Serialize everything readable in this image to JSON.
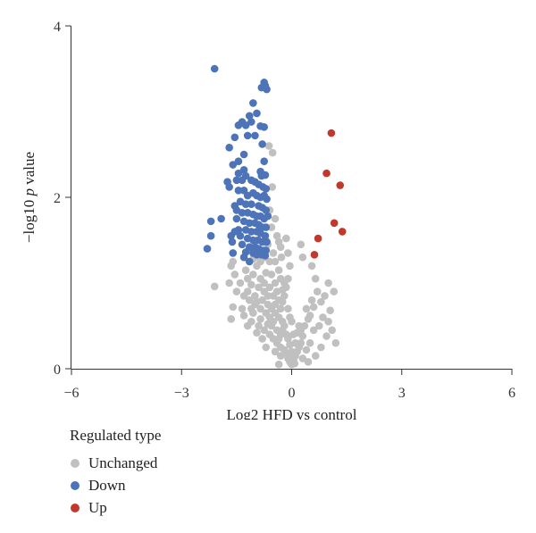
{
  "chart_data": {
    "type": "scatter",
    "xlabel": "Log2 HFD vs control",
    "ylabel_parts": [
      "−log10 ",
      "p",
      " value"
    ],
    "xlim": [
      -6,
      6
    ],
    "ylim": [
      0,
      4
    ],
    "x_ticks": [
      -6,
      -3,
      0,
      3,
      6
    ],
    "x_tick_labels": [
      "−6",
      "−3",
      "0",
      "3",
      "6"
    ],
    "y_ticks": [
      0,
      2,
      4
    ],
    "y_tick_labels": [
      "0",
      "2",
      "4"
    ],
    "grid": false,
    "legend": {
      "title": "Regulated type",
      "position": "bottom-left",
      "entries": [
        {
          "label": "Unchanged",
          "color": "#c0c0c0"
        },
        {
          "label": "Down",
          "color": "#4d73b8"
        },
        {
          "label": "Up",
          "color": "#c0392b"
        }
      ]
    },
    "series": [
      {
        "name": "Unchanged",
        "color": "#c0c0c0",
        "points": [
          [
            -0.62,
            2.6
          ],
          [
            -0.52,
            2.52
          ],
          [
            -0.53,
            2.12
          ],
          [
            -0.6,
            1.85
          ],
          [
            -0.45,
            1.75
          ],
          [
            -0.55,
            1.65
          ],
          [
            -0.4,
            1.55
          ],
          [
            -0.35,
            1.48
          ],
          [
            -0.3,
            1.42
          ],
          [
            -0.28,
            1.3
          ],
          [
            -0.5,
            1.35
          ],
          [
            -0.6,
            1.25
          ],
          [
            -0.85,
            1.25
          ],
          [
            -1.05,
            1.28
          ],
          [
            -1.3,
            1.3
          ],
          [
            -1.6,
            1.25
          ],
          [
            -1.65,
            1.2
          ],
          [
            -2.1,
            0.96
          ],
          [
            -1.7,
            1.0
          ],
          [
            -1.55,
            1.1
          ],
          [
            -1.25,
            1.15
          ],
          [
            -1.05,
            1.1
          ],
          [
            -0.85,
            1.05
          ],
          [
            -0.7,
            1.12
          ],
          [
            -0.55,
            1.1
          ],
          [
            -0.45,
            1.0
          ],
          [
            -0.4,
            0.9
          ],
          [
            -0.5,
            0.85
          ],
          [
            -0.6,
            0.95
          ],
          [
            -0.75,
            0.9
          ],
          [
            -0.9,
            0.95
          ],
          [
            -1.1,
            0.98
          ],
          [
            -1.2,
            0.9
          ],
          [
            -1.0,
            0.85
          ],
          [
            -0.8,
            0.8
          ],
          [
            -0.65,
            0.75
          ],
          [
            -0.55,
            0.7
          ],
          [
            -0.45,
            0.65
          ],
          [
            -0.35,
            0.6
          ],
          [
            -0.3,
            0.7
          ],
          [
            -0.25,
            0.55
          ],
          [
            -0.2,
            0.5
          ],
          [
            -0.25,
            0.45
          ],
          [
            -0.3,
            0.4
          ],
          [
            -0.35,
            0.35
          ],
          [
            -0.4,
            0.45
          ],
          [
            -0.5,
            0.55
          ],
          [
            -0.6,
            0.6
          ],
          [
            -0.7,
            0.65
          ],
          [
            -0.85,
            0.7
          ],
          [
            -1.0,
            0.75
          ],
          [
            -1.15,
            0.8
          ],
          [
            -1.3,
            0.85
          ],
          [
            -1.5,
            0.9
          ],
          [
            -1.6,
            0.72
          ],
          [
            -1.65,
            0.58
          ],
          [
            -1.3,
            0.62
          ],
          [
            -1.1,
            0.55
          ],
          [
            -0.9,
            0.5
          ],
          [
            -0.75,
            0.45
          ],
          [
            -0.6,
            0.4
          ],
          [
            -0.5,
            0.35
          ],
          [
            -0.4,
            0.3
          ],
          [
            -0.3,
            0.25
          ],
          [
            -0.2,
            0.22
          ],
          [
            -0.15,
            0.18
          ],
          [
            -0.1,
            0.12
          ],
          [
            -0.05,
            0.08
          ],
          [
            0.0,
            0.05
          ],
          [
            0.05,
            0.1
          ],
          [
            0.1,
            0.15
          ],
          [
            0.15,
            0.2
          ],
          [
            0.2,
            0.25
          ],
          [
            0.25,
            0.3
          ],
          [
            0.3,
            0.38
          ],
          [
            0.25,
            0.45
          ],
          [
            0.2,
            0.5
          ],
          [
            0.15,
            0.42
          ],
          [
            0.35,
            0.5
          ],
          [
            0.45,
            0.58
          ],
          [
            0.4,
            0.7
          ],
          [
            0.55,
            0.8
          ],
          [
            0.6,
            0.72
          ],
          [
            0.5,
            0.62
          ],
          [
            0.7,
            0.9
          ],
          [
            0.65,
            1.05
          ],
          [
            0.55,
            1.2
          ],
          [
            0.8,
            0.78
          ],
          [
            0.85,
            0.6
          ],
          [
            1.0,
            0.55
          ],
          [
            1.05,
            0.68
          ],
          [
            1.15,
            0.9
          ],
          [
            1.0,
            1.0
          ],
          [
            0.9,
            0.85
          ],
          [
            0.3,
            1.3
          ],
          [
            0.25,
            1.45
          ],
          [
            -0.15,
            1.52
          ],
          [
            -0.1,
            1.35
          ],
          [
            -0.05,
            1.2
          ],
          [
            -0.1,
            1.05
          ],
          [
            -0.15,
            0.95
          ],
          [
            -0.2,
            0.85
          ],
          [
            -0.25,
            0.78
          ],
          [
            -0.1,
            0.7
          ],
          [
            -0.05,
            0.6
          ],
          [
            0.0,
            0.55
          ],
          [
            0.05,
            0.4
          ],
          [
            0.1,
            0.3
          ],
          [
            -0.05,
            0.28
          ],
          [
            -0.1,
            0.35
          ],
          [
            -0.15,
            0.4
          ],
          [
            0.0,
            0.2
          ],
          [
            -0.08,
            0.15
          ],
          [
            0.08,
            0.06
          ],
          [
            -0.3,
            0.15
          ],
          [
            -0.45,
            0.2
          ],
          [
            -0.35,
            0.05
          ],
          [
            0.3,
            0.12
          ],
          [
            0.4,
            0.22
          ],
          [
            0.5,
            0.3
          ],
          [
            0.6,
            0.45
          ],
          [
            0.75,
            0.5
          ],
          [
            0.95,
            0.38
          ],
          [
            1.1,
            0.45
          ],
          [
            1.2,
            0.3
          ],
          [
            0.8,
            0.25
          ],
          [
            0.65,
            0.15
          ],
          [
            0.45,
            0.08
          ],
          [
            -0.7,
            0.25
          ],
          [
            -0.8,
            0.35
          ],
          [
            -0.95,
            0.42
          ],
          [
            -1.05,
            0.65
          ],
          [
            -1.35,
            0.7
          ],
          [
            -1.4,
            1.0
          ],
          [
            -1.2,
            1.05
          ],
          [
            -0.95,
            1.2
          ],
          [
            -0.75,
            1.3
          ],
          [
            -0.65,
            1.45
          ],
          [
            -0.75,
            1.38
          ],
          [
            -0.9,
            1.32
          ],
          [
            -1.15,
            1.4
          ],
          [
            -0.45,
            1.25
          ],
          [
            -0.35,
            1.15
          ],
          [
            -0.3,
            1.05
          ],
          [
            -0.2,
            1.0
          ],
          [
            -0.25,
            0.92
          ],
          [
            -0.35,
            0.8
          ],
          [
            -0.45,
            0.75
          ],
          [
            -0.55,
            0.5
          ],
          [
            -0.65,
            0.52
          ],
          [
            -0.85,
            0.58
          ],
          [
            -1.2,
            0.5
          ],
          [
            -0.75,
            1.0
          ],
          [
            -0.95,
            0.78
          ],
          [
            -1.1,
            0.7
          ],
          [
            -0.65,
            0.85
          ]
        ]
      },
      {
        "name": "Down",
        "color": "#4d73b8",
        "points": [
          [
            -2.1,
            3.5
          ],
          [
            -0.75,
            3.34
          ],
          [
            -0.72,
            3.3
          ],
          [
            -0.68,
            3.26
          ],
          [
            -0.82,
            3.28
          ],
          [
            -1.05,
            3.1
          ],
          [
            -0.95,
            2.98
          ],
          [
            -1.15,
            2.95
          ],
          [
            -1.1,
            2.88
          ],
          [
            -1.35,
            2.88
          ],
          [
            -1.45,
            2.84
          ],
          [
            -1.25,
            2.84
          ],
          [
            -0.85,
            2.83
          ],
          [
            -0.75,
            2.82
          ],
          [
            -1.2,
            2.72
          ],
          [
            -1.0,
            2.72
          ],
          [
            -1.55,
            2.7
          ],
          [
            -0.8,
            2.62
          ],
          [
            -1.7,
            2.58
          ],
          [
            -1.3,
            2.5
          ],
          [
            -1.45,
            2.42
          ],
          [
            -1.6,
            2.38
          ],
          [
            -0.75,
            2.42
          ],
          [
            -1.3,
            2.32
          ],
          [
            -1.25,
            2.25
          ],
          [
            -1.45,
            2.28
          ],
          [
            -0.85,
            2.3
          ],
          [
            -0.82,
            2.25
          ],
          [
            -0.72,
            2.26
          ],
          [
            -1.75,
            2.18
          ],
          [
            -1.7,
            2.12
          ],
          [
            -1.5,
            2.2
          ],
          [
            -1.35,
            2.2
          ],
          [
            -1.1,
            2.2
          ],
          [
            -1.0,
            2.18
          ],
          [
            -0.9,
            2.15
          ],
          [
            -0.78,
            2.12
          ],
          [
            -0.7,
            2.1
          ],
          [
            -1.45,
            2.08
          ],
          [
            -1.3,
            2.08
          ],
          [
            -1.2,
            2.02
          ],
          [
            -1.05,
            2.05
          ],
          [
            -0.95,
            2.02
          ],
          [
            -0.85,
            2.0
          ],
          [
            -0.75,
            2.02
          ],
          [
            -0.68,
            1.98
          ],
          [
            -1.4,
            1.95
          ],
          [
            -1.25,
            1.92
          ],
          [
            -1.1,
            1.92
          ],
          [
            -0.9,
            1.9
          ],
          [
            -0.8,
            1.88
          ],
          [
            -0.7,
            1.85
          ],
          [
            -1.35,
            1.82
          ],
          [
            -1.2,
            1.82
          ],
          [
            -1.05,
            1.8
          ],
          [
            -0.95,
            1.78
          ],
          [
            -0.85,
            1.78
          ],
          [
            -0.75,
            1.75
          ],
          [
            -0.65,
            1.78
          ],
          [
            -1.5,
            1.75
          ],
          [
            -1.3,
            1.72
          ],
          [
            -1.15,
            1.7
          ],
          [
            -1.0,
            1.7
          ],
          [
            -0.9,
            1.68
          ],
          [
            -0.8,
            1.65
          ],
          [
            -0.7,
            1.65
          ],
          [
            -1.45,
            1.62
          ],
          [
            -1.25,
            1.62
          ],
          [
            -1.1,
            1.6
          ],
          [
            -0.95,
            1.6
          ],
          [
            -0.85,
            1.58
          ],
          [
            -0.72,
            1.55
          ],
          [
            -1.4,
            1.55
          ],
          [
            -1.2,
            1.52
          ],
          [
            -1.05,
            1.5
          ],
          [
            -0.92,
            1.5
          ],
          [
            -0.8,
            1.48
          ],
          [
            -0.68,
            1.48
          ],
          [
            -1.35,
            1.45
          ],
          [
            -1.15,
            1.42
          ],
          [
            -1.0,
            1.42
          ],
          [
            -0.9,
            1.4
          ],
          [
            -0.78,
            1.38
          ],
          [
            -0.7,
            1.38
          ],
          [
            -1.25,
            1.36
          ],
          [
            -1.05,
            1.35
          ],
          [
            -0.95,
            1.33
          ],
          [
            -0.82,
            1.33
          ],
          [
            -0.72,
            1.32
          ],
          [
            -1.6,
            1.35
          ],
          [
            -1.65,
            1.55
          ],
          [
            -1.62,
            1.48
          ],
          [
            -1.92,
            1.75
          ],
          [
            -2.2,
            1.72
          ],
          [
            -2.2,
            1.55
          ],
          [
            -2.3,
            1.4
          ],
          [
            -1.55,
            1.6
          ],
          [
            -1.55,
            1.9
          ],
          [
            -1.5,
            1.85
          ],
          [
            -1.15,
            1.25
          ],
          [
            -1.3,
            1.3
          ]
        ]
      },
      {
        "name": "Up",
        "color": "#c0392b",
        "points": [
          [
            1.08,
            2.75
          ],
          [
            0.95,
            2.28
          ],
          [
            1.32,
            2.14
          ],
          [
            1.16,
            1.7
          ],
          [
            1.38,
            1.6
          ],
          [
            0.72,
            1.52
          ],
          [
            0.62,
            1.33
          ]
        ]
      }
    ]
  }
}
